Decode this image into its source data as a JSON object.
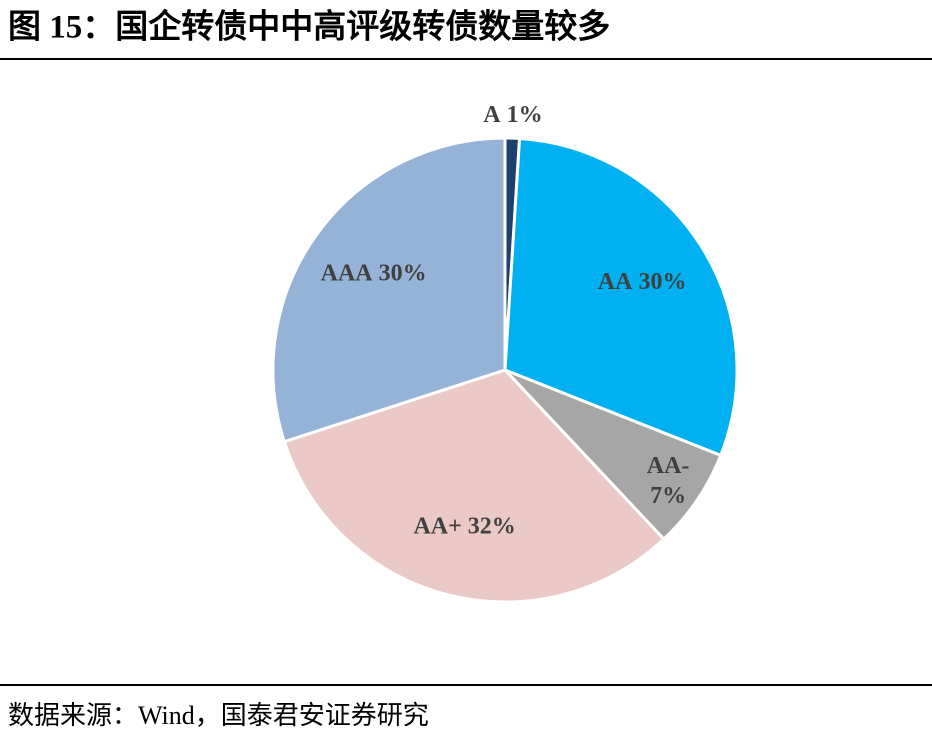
{
  "chart_data": {
    "type": "pie",
    "title": "图 15：国企转债中中高评级转债数量较多",
    "categories": [
      "A",
      "AA",
      "AA-",
      "AA+",
      "AAA"
    ],
    "values": [
      1,
      30,
      7,
      32,
      30
    ],
    "value_labels": [
      "1%",
      "30%",
      "7%",
      "32%",
      "30%"
    ],
    "colors": [
      "#1f3f6e",
      "#00b0f0",
      "#a6a6a6",
      "#ebc9c6",
      "#95b3d7"
    ],
    "source": "数据来源：Wind，国泰君安证券研究"
  }
}
